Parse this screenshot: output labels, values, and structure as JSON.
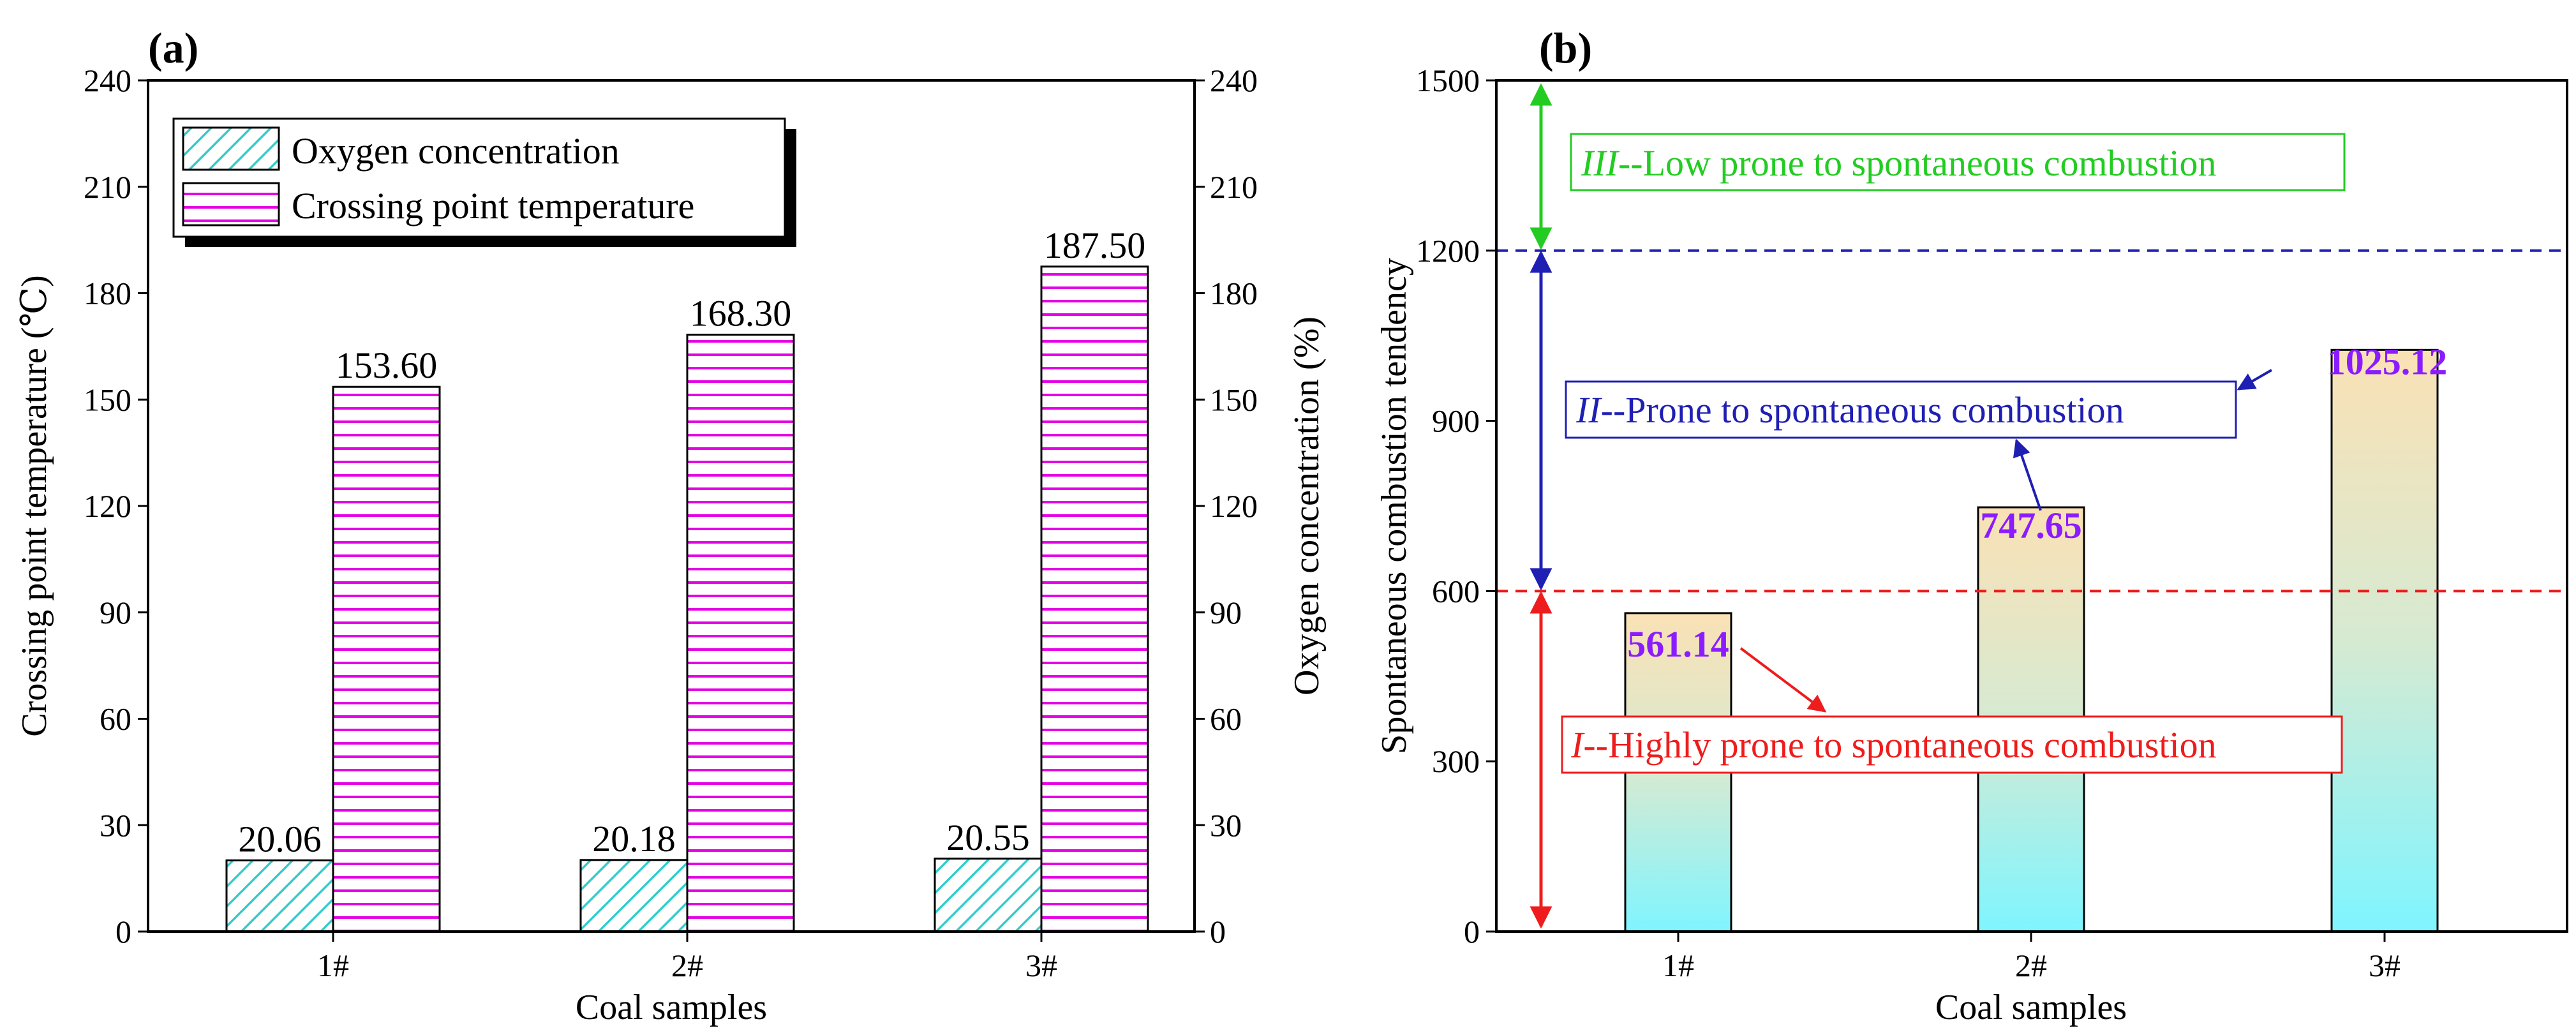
{
  "panel_a": {
    "label": "(a)",
    "xlabel": "Coal samples",
    "ylabel_left": "Crossing point temperature (℃)",
    "ylabel_right": "Oxygen concentration (%)",
    "legend": [
      "Oxygen concentration",
      "Crossing point temperature"
    ]
  },
  "panel_b": {
    "label": "(b)",
    "xlabel": "Coal samples",
    "ylabel": "Spontaneous combustion tendency",
    "zone_III": {
      "roman": "III",
      "text": "--Low prone to spontaneous combustion",
      "color": "#22cc22"
    },
    "zone_II": {
      "roman": "II",
      "text": "--Prone to spontaneous combustion",
      "color": "#1f1fb4"
    },
    "zone_I": {
      "roman": "I",
      "text": "--Highly prone to spontaneous combustion",
      "color": "#ee1c1c"
    }
  },
  "chart_data": [
    {
      "type": "bar",
      "title": "(a)",
      "categories": [
        "1#",
        "2#",
        "3#"
      ],
      "xlabel": "Coal samples",
      "ylabel": "Crossing point temperature (℃)",
      "ylabel_right": "Oxygen concentration (%)",
      "ylim": [
        0,
        240
      ],
      "yticks": [
        "0",
        "30",
        "60",
        "90",
        "120",
        "150",
        "180",
        "210",
        "240"
      ],
      "series": [
        {
          "name": "Oxygen concentration",
          "values": [
            20.06,
            20.18,
            20.55
          ],
          "labels": [
            "20.06",
            "20.18",
            "20.55"
          ],
          "color": "#33cccc"
        },
        {
          "name": "Crossing point temperature",
          "values": [
            153.6,
            168.3,
            187.5
          ],
          "labels": [
            "153.60",
            "168.30",
            "187.50"
          ],
          "color": "#e600e6"
        }
      ],
      "legend_position": "top-left"
    },
    {
      "type": "bar",
      "title": "(b)",
      "categories": [
        "1#",
        "2#",
        "3#"
      ],
      "xlabel": "Coal samples",
      "ylabel": "Spontaneous combustion tendency",
      "ylim": [
        0,
        1500
      ],
      "yticks": [
        "0",
        "300",
        "600",
        "900",
        "1200",
        "1500"
      ],
      "values": [
        561.14,
        747.65,
        1025.12
      ],
      "labels": [
        "561.14",
        "747.65",
        "1025.12"
      ],
      "label_color": "#8b1cff",
      "thresholds": [
        {
          "value": 600,
          "color": "#ee1c1c"
        },
        {
          "value": 1200,
          "color": "#1f1fb4"
        }
      ]
    }
  ]
}
